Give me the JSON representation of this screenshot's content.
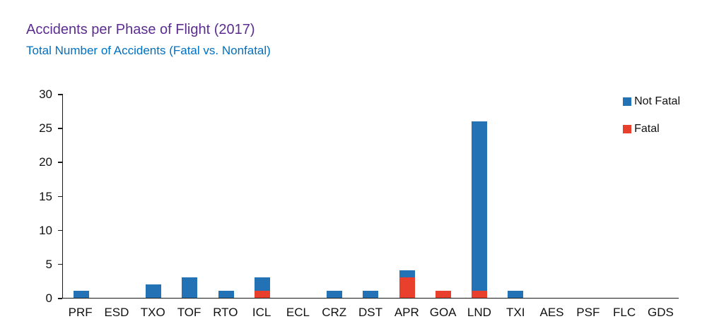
{
  "chart_data": {
    "type": "bar",
    "stacked": true,
    "title": "Accidents per Phase of Flight (2017)",
    "subtitle": "Total Number of Accidents (Fatal vs. Nonfatal)",
    "categories": [
      "PRF",
      "ESD",
      "TXO",
      "TOF",
      "RTO",
      "ICL",
      "ECL",
      "CRZ",
      "DST",
      "APR",
      "GOA",
      "LND",
      "TXI",
      "AES",
      "PSF",
      "FLC",
      "GDS"
    ],
    "series": [
      {
        "name": "Not Fatal",
        "color": "#2272b5",
        "values": [
          1,
          0,
          2,
          3,
          1,
          2,
          0,
          1,
          1,
          1,
          0,
          25,
          1,
          0,
          0,
          0,
          0
        ]
      },
      {
        "name": "Fatal",
        "color": "#e8402c",
        "values": [
          0,
          0,
          0,
          0,
          0,
          1,
          0,
          0,
          0,
          3,
          1,
          1,
          0,
          0,
          0,
          0,
          0
        ]
      }
    ],
    "ylim": [
      0,
      30
    ],
    "yticks": [
      0,
      5,
      10,
      15,
      20,
      25,
      30
    ],
    "xlabel": "",
    "ylabel": "",
    "grid": false,
    "legend_position": "top-right"
  },
  "colors": {
    "title": "#5c2d91",
    "subtitle": "#0070c0",
    "not_fatal": "#2272b5",
    "fatal": "#e8402c",
    "axis": "#1a1a1a"
  }
}
